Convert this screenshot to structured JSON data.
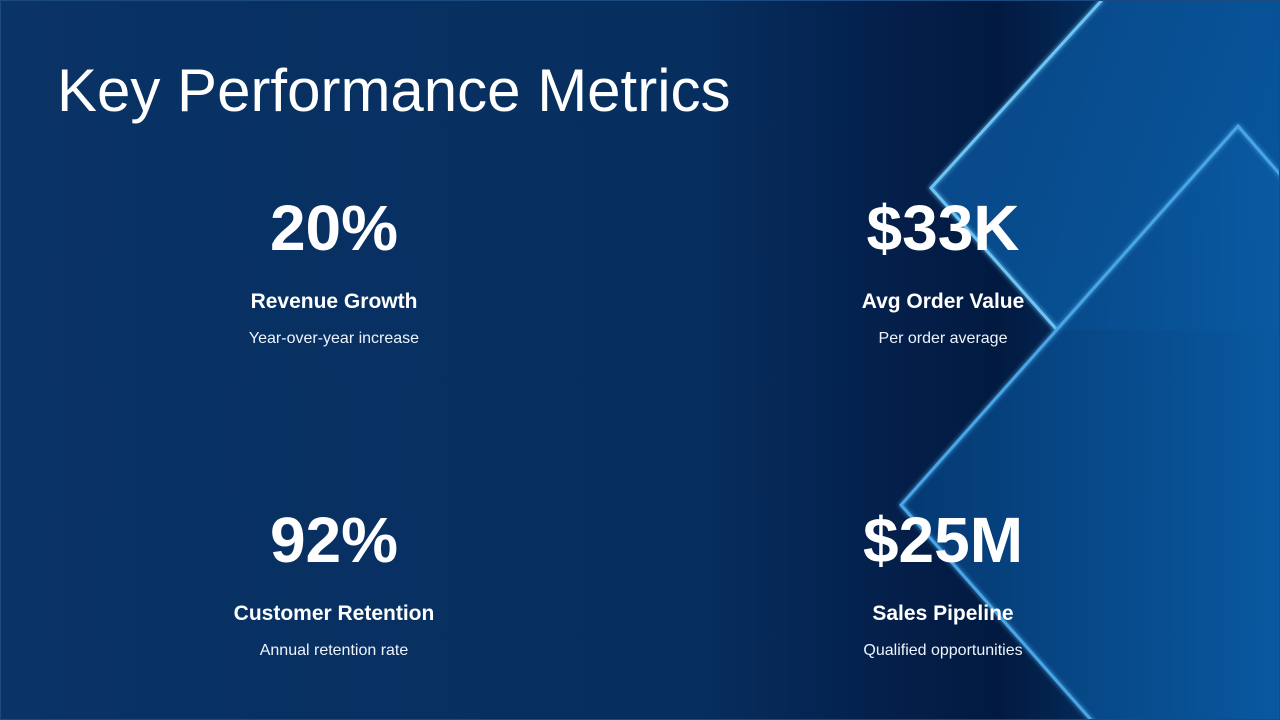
{
  "slide": {
    "title": "Key Performance Metrics",
    "colors": {
      "background": "#062e5e",
      "accent": "#4aa6e6",
      "text": "#ffffff"
    },
    "metrics": [
      {
        "value": "20%",
        "label": "Revenue Growth",
        "description": "Year-over-year increase"
      },
      {
        "value": "$33K",
        "label": "Avg Order Value",
        "description": "Per order average"
      },
      {
        "value": "92%",
        "label": "Customer Retention",
        "description": "Annual retention rate"
      },
      {
        "value": "$25M",
        "label": "Sales Pipeline",
        "description": "Qualified opportunities"
      }
    ]
  }
}
